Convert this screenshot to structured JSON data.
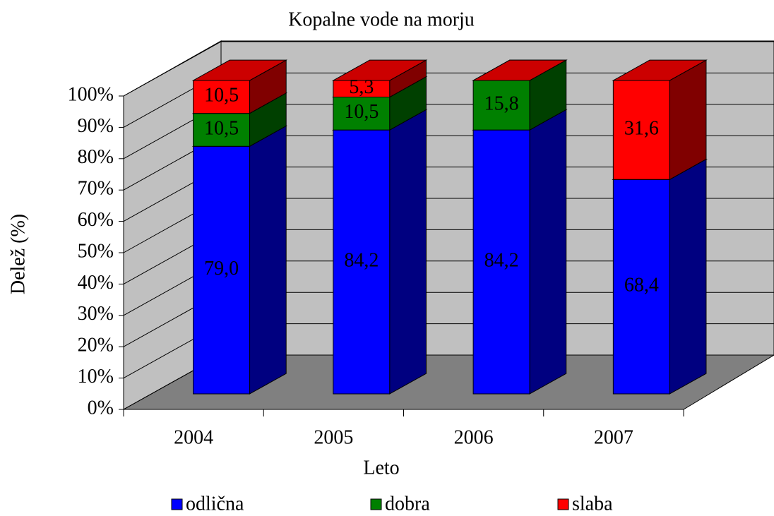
{
  "chart_data": {
    "type": "bar3d_stacked",
    "title": "Kopalne vode na morju",
    "x_label": "Leto",
    "y_label": "Delež (%)",
    "categories": [
      "2004",
      "2005",
      "2006",
      "2007"
    ],
    "series": [
      {
        "name": "odlična",
        "color": "#0000ff",
        "values": [
          79.0,
          84.2,
          84.2,
          68.4
        ],
        "value_labels": [
          "79,0",
          "84,2",
          "84,2",
          "68,4"
        ]
      },
      {
        "name": "dobra",
        "color": "#008000",
        "values": [
          10.5,
          10.5,
          15.8,
          0
        ],
        "value_labels": [
          "10,5",
          "10,5",
          "15,8",
          null
        ]
      },
      {
        "name": "slaba",
        "color": "#ff0000",
        "values": [
          10.5,
          5.3,
          0,
          31.6
        ],
        "value_labels": [
          "10,5",
          "5,3",
          null,
          "31,6"
        ]
      }
    ],
    "ylim": [
      0,
      100
    ],
    "yticks": [
      {
        "value": 0,
        "label": "0%"
      },
      {
        "value": 10,
        "label": "10%"
      },
      {
        "value": 20,
        "label": "20%"
      },
      {
        "value": 30,
        "label": "30%"
      },
      {
        "value": 40,
        "label": "40%"
      },
      {
        "value": 50,
        "label": "50%"
      },
      {
        "value": 60,
        "label": "60%"
      },
      {
        "value": 70,
        "label": "70%"
      },
      {
        "value": 80,
        "label": "80%"
      },
      {
        "value": 90,
        "label": "90%"
      },
      {
        "value": 100,
        "label": "100%"
      }
    ],
    "grid": true,
    "legend": "bottom"
  }
}
